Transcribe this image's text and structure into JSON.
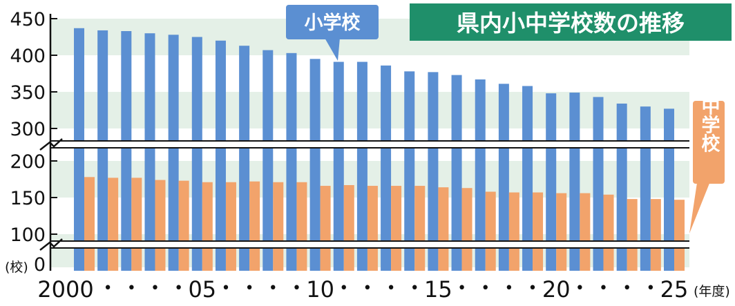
{
  "chart_data": {
    "type": "bar",
    "title": "県内小中学校数の推移",
    "unit_label": "(校)",
    "year_label": "(年度)",
    "x_tick_labels": [
      "2000",
      "•",
      "•",
      "•",
      "•",
      "05",
      "•",
      "•",
      "•",
      "•",
      "10",
      "•",
      "•",
      "•",
      "•",
      "15",
      "•",
      "•",
      "•",
      "•",
      "20",
      "•",
      "•",
      "•",
      "•",
      "25"
    ],
    "categories": [
      2000,
      2001,
      2002,
      2003,
      2004,
      2005,
      2006,
      2007,
      2008,
      2009,
      2010,
      2011,
      2012,
      2013,
      2014,
      2015,
      2016,
      2017,
      2018,
      2019,
      2020,
      2021,
      2022,
      2023,
      2024,
      2025
    ],
    "y_tick_labels": [
      "0",
      "100",
      "150",
      "200",
      "300",
      "350",
      "400",
      "450"
    ],
    "axis_break": true,
    "grid": "horizontal bands",
    "series": [
      {
        "name": "小学校",
        "color": "#5b8fd2",
        "values": [
          437,
          434,
          433,
          430,
          428,
          425,
          420,
          413,
          407,
          403,
          395,
          391,
          391,
          386,
          378,
          377,
          373,
          367,
          361,
          358,
          348,
          349,
          343,
          334,
          330,
          327
        ]
      },
      {
        "name": "中学校",
        "color": "#f2a36b",
        "values": [
          178,
          177,
          177,
          174,
          173,
          171,
          171,
          172,
          171,
          171,
          166,
          167,
          166,
          166,
          166,
          164,
          163,
          158,
          157,
          157,
          156,
          156,
          154,
          148,
          148,
          147
        ]
      }
    ],
    "title_bg": "#1f8f6a"
  }
}
